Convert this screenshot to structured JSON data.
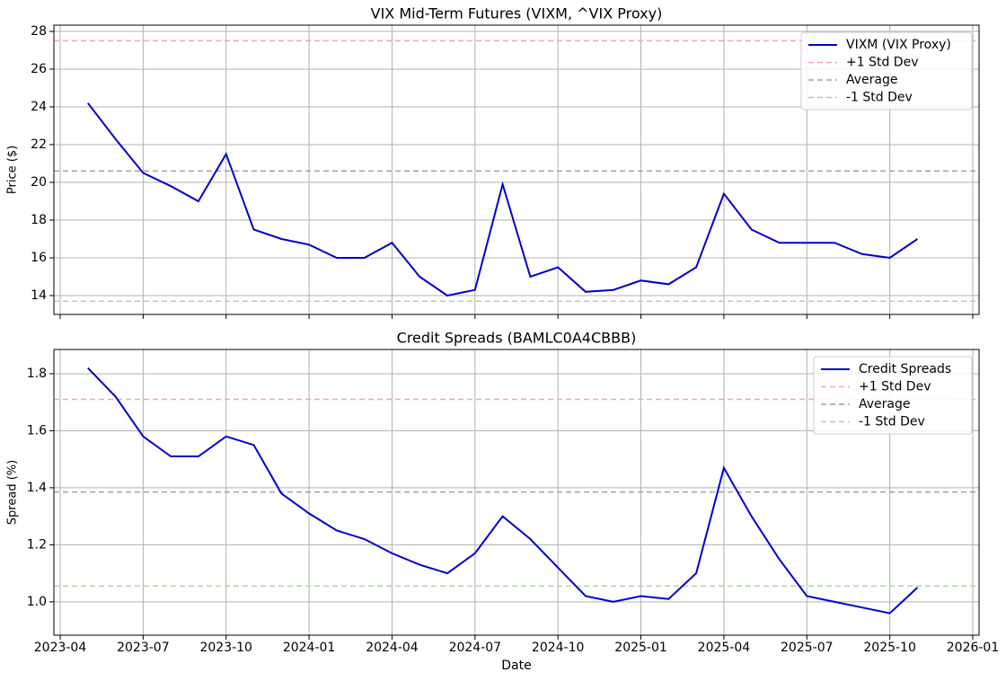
{
  "chart_data": [
    {
      "type": "line",
      "title": "VIX Mid-Term Futures (VIXM, ^VIX Proxy)",
      "ylabel": "Price ($)",
      "x": [
        "2023-05",
        "2023-06",
        "2023-07",
        "2023-08",
        "2023-09",
        "2023-10",
        "2023-11",
        "2023-12",
        "2024-01",
        "2024-02",
        "2024-03",
        "2024-04",
        "2024-05",
        "2024-06",
        "2024-07",
        "2024-08",
        "2024-09",
        "2024-10",
        "2024-11",
        "2024-12",
        "2025-01",
        "2025-02",
        "2025-03",
        "2025-04",
        "2025-05",
        "2025-06",
        "2025-07",
        "2025-08",
        "2025-09",
        "2025-10",
        "2025-11"
      ],
      "series": [
        {
          "name": "VIXM (VIX Proxy)",
          "color": "#0000cc",
          "values": [
            24.2,
            22.3,
            20.5,
            19.8,
            19.0,
            21.5,
            17.5,
            17.0,
            16.7,
            16.0,
            16.0,
            16.8,
            15.0,
            14.0,
            14.3,
            19.9,
            15.0,
            15.5,
            14.2,
            14.3,
            14.8,
            14.6,
            15.5,
            19.4,
            17.5,
            16.8,
            16.8,
            16.8,
            16.2,
            16.0,
            17.0
          ]
        }
      ],
      "reference_lines": [
        {
          "name": "+1 Std Dev",
          "value": 27.5,
          "color": "#f4a6a6"
        },
        {
          "name": "Average",
          "value": 20.6,
          "color": "#a0a0a0"
        },
        {
          "name": "-1 Std Dev",
          "value": 13.7,
          "color": "#a8d8a0"
        }
      ],
      "xlim": [
        "2023-04",
        "2026-01"
      ],
      "ylim": [
        13.0,
        28.33
      ],
      "yticks": [
        14,
        16,
        18,
        20,
        22,
        24,
        26,
        28
      ],
      "grid": true,
      "legend": "upper right"
    },
    {
      "type": "line",
      "title": "Credit Spreads (BAMLC0A4CBBB)",
      "ylabel": "Spread (%)",
      "xlabel": "Date",
      "x": [
        "2023-05",
        "2023-06",
        "2023-07",
        "2023-08",
        "2023-09",
        "2023-10",
        "2023-11",
        "2023-12",
        "2024-01",
        "2024-02",
        "2024-03",
        "2024-04",
        "2024-05",
        "2024-06",
        "2024-07",
        "2024-08",
        "2024-09",
        "2024-10",
        "2024-11",
        "2024-12",
        "2025-01",
        "2025-02",
        "2025-03",
        "2025-04",
        "2025-05",
        "2025-06",
        "2025-07",
        "2025-08",
        "2025-09",
        "2025-10",
        "2025-11"
      ],
      "series": [
        {
          "name": "Credit Spreads",
          "color": "#0000cc",
          "values": [
            1.82,
            1.72,
            1.58,
            1.51,
            1.51,
            1.58,
            1.55,
            1.38,
            1.31,
            1.25,
            1.22,
            1.17,
            1.13,
            1.1,
            1.17,
            1.3,
            1.22,
            1.12,
            1.02,
            1.0,
            1.02,
            1.01,
            1.1,
            1.47,
            1.3,
            1.15,
            1.02,
            1.0,
            0.98,
            0.96,
            1.05
          ]
        }
      ],
      "reference_lines": [
        {
          "name": "+1 Std Dev",
          "value": 1.71,
          "color": "#f4a6a6"
        },
        {
          "name": "Average",
          "value": 1.385,
          "color": "#a0a0a0"
        },
        {
          "name": "-1 Std Dev",
          "value": 1.055,
          "color": "#a8d8a0"
        }
      ],
      "xlim": [
        "2023-04",
        "2026-01"
      ],
      "ylim": [
        0.883,
        1.885
      ],
      "yticks": [
        {
          "value": 1.0,
          "label": "1.0"
        },
        1.2,
        1.4,
        1.6,
        1.8
      ],
      "xticks": [
        "2023-04",
        "2023-07",
        "2023-10",
        "2024-01",
        "2024-04",
        "2024-07",
        "2024-10",
        "2025-01",
        "2025-04",
        "2025-07",
        "2025-10",
        "2026-01"
      ],
      "grid": true,
      "legend": "upper right"
    }
  ]
}
